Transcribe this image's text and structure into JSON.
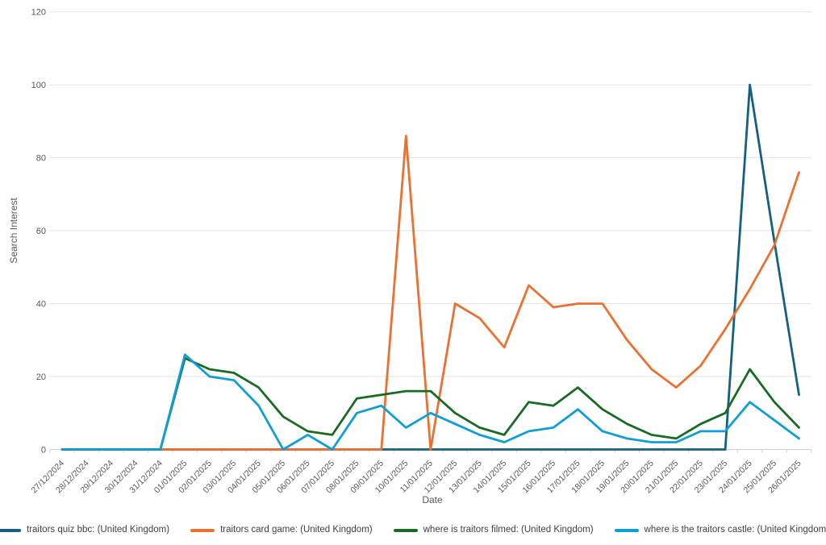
{
  "chart_data": {
    "type": "line",
    "title": "",
    "xlabel": "Date",
    "ylabel": "Search Interest",
    "ylim": [
      0,
      120
    ],
    "yticks": [
      0,
      20,
      40,
      60,
      80,
      100,
      120
    ],
    "grid": "horizontal",
    "legend_position": "bottom",
    "categories": [
      "27/12/2024",
      "28/12/2024",
      "29/12/2024",
      "30/12/2024",
      "31/12/2024",
      "01/01/2025",
      "02/01/2025",
      "03/01/2025",
      "04/01/2025",
      "05/01/2025",
      "06/01/2025",
      "07/01/2025",
      "08/01/2025",
      "09/01/2025",
      "10/01/2025",
      "11/01/2025",
      "12/01/2025",
      "13/01/2025",
      "14/01/2025",
      "15/01/2025",
      "16/01/2025",
      "17/01/2025",
      "18/01/2025",
      "19/01/2025",
      "20/01/2025",
      "21/01/2025",
      "22/01/2025",
      "23/01/2025",
      "24/01/2025",
      "25/01/2025",
      "26/01/2025"
    ],
    "series": [
      {
        "name": "traitors quiz bbc: (United Kingdom)",
        "color": "#156082",
        "values": [
          0,
          0,
          0,
          0,
          0,
          0,
          0,
          0,
          0,
          0,
          0,
          0,
          0,
          0,
          0,
          0,
          0,
          0,
          0,
          0,
          0,
          0,
          0,
          0,
          0,
          0,
          0,
          0,
          100,
          57,
          15
        ]
      },
      {
        "name": "traitors card game: (United Kingdom)",
        "color": "#E97132",
        "values": [
          0,
          0,
          0,
          0,
          0,
          0,
          0,
          0,
          0,
          0,
          0,
          0,
          0,
          0,
          86,
          0,
          40,
          36,
          28,
          45,
          39,
          40,
          40,
          30,
          22,
          17,
          23,
          33,
          44,
          56,
          76
        ]
      },
      {
        "name": "where is traitors filmed: (United Kingdom)",
        "color": "#196B24",
        "values": [
          0,
          0,
          0,
          0,
          0,
          25,
          22,
          21,
          17,
          9,
          5,
          4,
          14,
          15,
          16,
          16,
          10,
          6,
          4,
          13,
          12,
          17,
          11,
          7,
          4,
          3,
          7,
          10,
          22,
          13,
          6
        ]
      },
      {
        "name": "where is the traitors castle: (United Kingdom)",
        "color": "#0F9ED5",
        "values": [
          0,
          0,
          0,
          0,
          0,
          26,
          20,
          19,
          12,
          0,
          4,
          0,
          10,
          12,
          6,
          10,
          7,
          4,
          2,
          5,
          6,
          11,
          5,
          3,
          2,
          2,
          5,
          5,
          13,
          8,
          3
        ]
      }
    ]
  },
  "colors": {
    "background": "#ffffff",
    "gridline": "#e2e2e2",
    "axis_line": "#d0d0d0",
    "tick_mark": "#d0d0d0",
    "axis_text": "#595959",
    "legend_text": "#404040"
  }
}
